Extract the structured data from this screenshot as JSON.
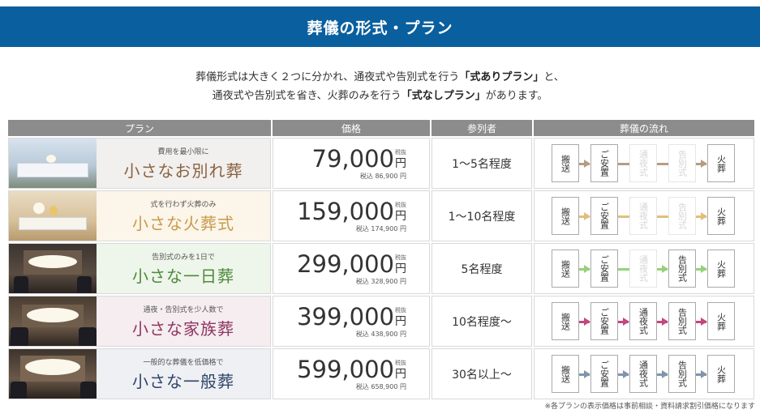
{
  "banner_title": "葬儀の形式・プラン",
  "intro": {
    "line1_pre": "葬儀形式は大きく２つに分かれ、通夜式や告別式を行う",
    "line1_bold": "「式ありプラン」",
    "line1_post": "と、",
    "line2_pre": "通夜式や告別式を省き、火葬のみを行う",
    "line2_bold": "「式なしプラン」",
    "line2_post": "があります。"
  },
  "headers": {
    "plan": "プラン",
    "price": "価格",
    "attendees": "参列者",
    "flow": "葬儀の流れ"
  },
  "tax_ex_label": "税抜",
  "yen": "円",
  "plans": [
    {
      "sub": "費用を最小限に",
      "name": "小さなお別れ葬",
      "price": "79,000",
      "price_inc": "税込 86,900 円",
      "attendees": "1～5名程度",
      "name_color": "#8a6240",
      "bg": "#f1f0ef",
      "arrow": "#b59d84",
      "steps": [
        "搬送",
        "ご安置",
        "通夜式",
        "告別式",
        "火葬"
      ],
      "active": [
        true,
        true,
        false,
        false,
        true
      ]
    },
    {
      "sub": "式を行わず火葬のみ",
      "name": "小さな火葬式",
      "price": "159,000",
      "price_inc": "税込 174,900 円",
      "attendees": "1～10名程度",
      "name_color": "#c89a4a",
      "bg": "#fbf5ea",
      "arrow": "#e0bf7b",
      "steps": [
        "搬送",
        "ご安置",
        "通夜式",
        "告別式",
        "火葬"
      ],
      "active": [
        true,
        true,
        false,
        false,
        true
      ]
    },
    {
      "sub": "告別式のみを1日で",
      "name": "小さな一日葬",
      "price": "299,000",
      "price_inc": "税込 328,900 円",
      "attendees": "5名程度",
      "name_color": "#4c8a3a",
      "bg": "#eef5ea",
      "arrow": "#96d17a",
      "steps": [
        "搬送",
        "ご安置",
        "通夜式",
        "告別式",
        "火葬"
      ],
      "active": [
        true,
        true,
        false,
        true,
        true
      ]
    },
    {
      "sub": "通夜・告別式を少人数で",
      "name": "小さな家族葬",
      "price": "399,000",
      "price_inc": "税込 438,900 円",
      "attendees": "10名程度～",
      "name_color": "#8f3560",
      "bg": "#f5edf0",
      "arrow": "#c2487e",
      "steps": [
        "搬送",
        "ご安置",
        "通夜式",
        "告別式",
        "火葬"
      ],
      "active": [
        true,
        true,
        true,
        true,
        true
      ]
    },
    {
      "sub": "一般的な葬儀を低価格で",
      "name": "小さな一般葬",
      "price": "599,000",
      "price_inc": "税込 658,900 円",
      "attendees": "30名以上～",
      "name_color": "#2e4468",
      "bg": "#eef0f4",
      "arrow": "#8095ab",
      "steps": [
        "搬送",
        "ご安置",
        "通夜式",
        "告別式",
        "火葬"
      ],
      "active": [
        true,
        true,
        true,
        true,
        true
      ]
    }
  ],
  "footnote": "※各プランの表示価格は事前相談・資料請求割引価格になります"
}
